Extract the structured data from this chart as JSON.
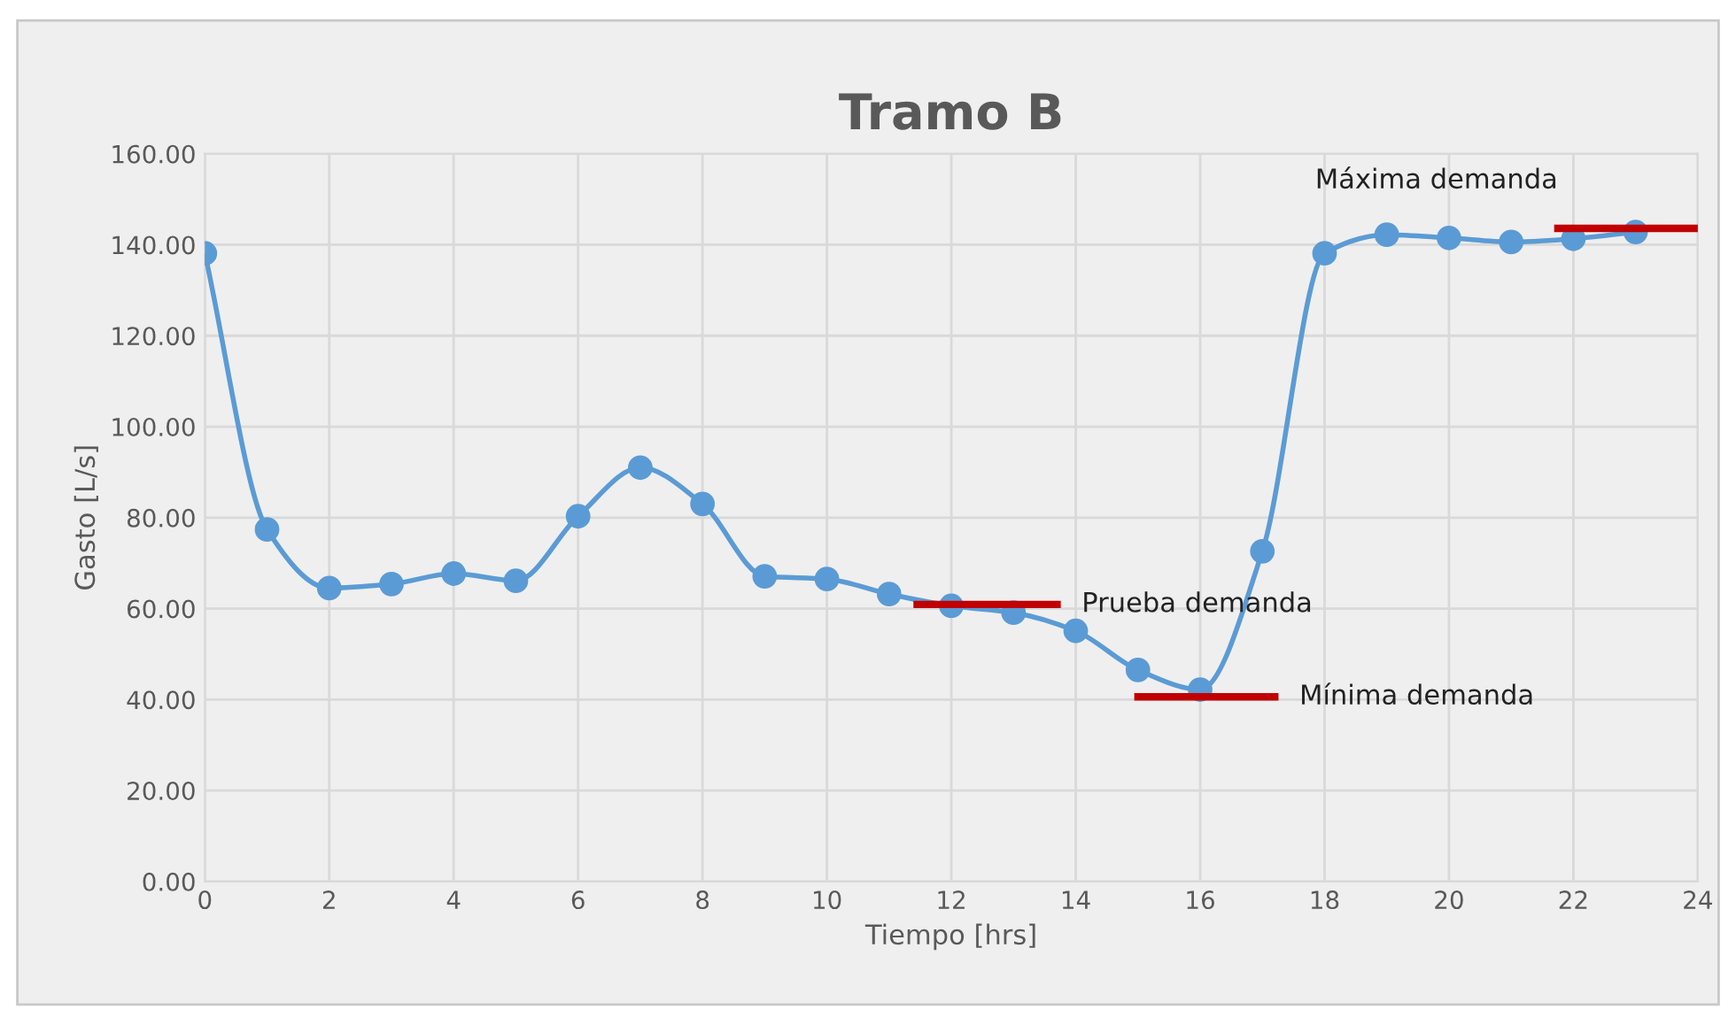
{
  "chart_data": {
    "type": "line",
    "title": "Tramo B",
    "xlabel": "Tiempo [hrs]",
    "ylabel": "Gasto [L/s]",
    "x": [
      0,
      1,
      2,
      3,
      4,
      5,
      6,
      7,
      8,
      9,
      10,
      11,
      12,
      13,
      14,
      15,
      16,
      17,
      18,
      19,
      20,
      21,
      22,
      23
    ],
    "series": [
      {
        "color": "#5b9bd5",
        "marker": "circle",
        "values": [
          138.1,
          77.4,
          64.5,
          65.4,
          67.7,
          66.1,
          80.3,
          91.0,
          83.0,
          67.1,
          66.5,
          63.2,
          60.6,
          59.1,
          55.1,
          46.5,
          42.2,
          72.6,
          138.1,
          142.2,
          141.5,
          140.6,
          141.3,
          142.8
        ]
      },
      {
        "type": "line",
        "color": "#c00000",
        "marker": "none",
        "x": [
          11.45,
          13.7
        ],
        "values": [
          60.9,
          60.9
        ]
      },
      {
        "type": "line",
        "color": "#c00000",
        "marker": "none",
        "x": [
          15.0,
          17.2
        ],
        "values": [
          40.6,
          40.6
        ]
      },
      {
        "type": "line",
        "color": "#c00000",
        "marker": "none",
        "x": [
          21.75,
          24
        ],
        "values": [
          143.6,
          143.6
        ]
      }
    ],
    "annotations": [
      {
        "text": "Prueba demanda",
        "x": 13.7,
        "y": 60.9
      },
      {
        "text": "Mínima demanda",
        "x": 17.2,
        "y": 40.6
      },
      {
        "text": "Máxima demanda",
        "x": 21.75,
        "y": 143.6
      }
    ],
    "xlim": [
      0,
      24
    ],
    "xticks": [
      0,
      2,
      4,
      6,
      8,
      10,
      12,
      14,
      16,
      18,
      20,
      22,
      24
    ],
    "ylim": [
      0,
      160
    ],
    "yticks": [
      {
        "value": 0,
        "label": "0.00"
      },
      {
        "value": 20,
        "label": "20.00"
      },
      {
        "value": 40,
        "label": "40.00"
      },
      {
        "value": 60,
        "label": "60.00"
      },
      {
        "value": 80,
        "label": "80.00"
      },
      {
        "value": 100,
        "label": "100.00"
      },
      {
        "value": 120,
        "label": "120.00"
      },
      {
        "value": 140,
        "label": "140.00"
      },
      {
        "value": 160,
        "label": "160.00"
      }
    ],
    "grid": true
  }
}
